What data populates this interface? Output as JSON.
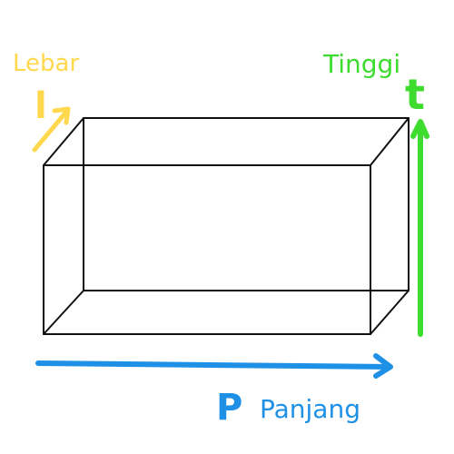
{
  "labels": {
    "width_word": "Lebar",
    "width_symbol": "l",
    "height_word": "Tinggi",
    "height_symbol": "t",
    "length_word": "Panjang",
    "length_symbol": "P"
  },
  "colors": {
    "width": "#FFD84D",
    "height": "#3DDC2E",
    "length": "#1E90E6",
    "edges": "#111111"
  }
}
